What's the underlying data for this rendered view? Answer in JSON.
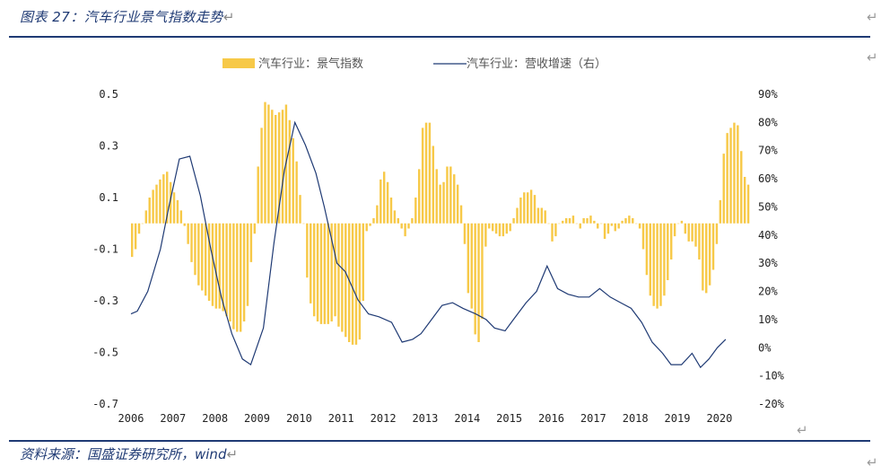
{
  "header": {
    "title": "图表 27：汽车行业景气指数走势",
    "return_mark": "↵"
  },
  "footer": {
    "source": "资料来源：国盛证券研究所，wind"
  },
  "colors": {
    "bar": "#f7c948",
    "line": "#1f3a74",
    "rule": "#1f3a74"
  },
  "chart_data": {
    "type": "bar+line",
    "title": "汽车行业景气指数走势",
    "legend": {
      "placement": "top-center",
      "bar_label": "汽车行业：景气指数",
      "line_label": "汽车行业：营收增速（右）"
    },
    "x_labels": [
      "2006",
      "2007",
      "2008",
      "2009",
      "2010",
      "2011",
      "2012",
      "2013",
      "2014",
      "2015",
      "2016",
      "2017",
      "2018",
      "2019",
      "2020"
    ],
    "x_range": [
      2006.0,
      2020.6
    ],
    "left_axis": {
      "range": [
        -0.7,
        0.5
      ],
      "ticks": [
        0.5,
        0.3,
        0.1,
        -0.1,
        -0.3,
        -0.5,
        -0.7
      ],
      "tick_labels": [
        "0.5",
        "0.3",
        "0.1",
        "-0.1",
        "-0.3",
        "-0.5",
        "-0.7"
      ]
    },
    "right_axis": {
      "range": [
        -20,
        90
      ],
      "ticks": [
        90,
        80,
        70,
        60,
        50,
        40,
        30,
        20,
        10,
        0,
        -10,
        -20
      ],
      "tick_labels": [
        "90%",
        "80%",
        "70%",
        "60%",
        "50%",
        "40%",
        "30%",
        "20%",
        "10%",
        "0%",
        "-10%",
        "-20%"
      ]
    },
    "bar_series": {
      "name": "汽车行业：景气指数",
      "x_start": 2006.0,
      "step": 0.0833,
      "values": [
        -0.13,
        -0.1,
        -0.04,
        0.0,
        0.05,
        0.1,
        0.13,
        0.15,
        0.17,
        0.19,
        0.2,
        0.16,
        0.12,
        0.09,
        0.05,
        -0.01,
        -0.08,
        -0.15,
        -0.2,
        -0.24,
        -0.26,
        -0.28,
        -0.3,
        -0.32,
        -0.33,
        -0.33,
        -0.34,
        -0.36,
        -0.38,
        -0.41,
        -0.42,
        -0.42,
        -0.38,
        -0.32,
        -0.15,
        -0.04,
        0.22,
        0.37,
        0.47,
        0.46,
        0.44,
        0.42,
        0.43,
        0.44,
        0.46,
        0.4,
        0.33,
        0.24,
        0.11,
        0.0,
        -0.21,
        -0.31,
        -0.36,
        -0.38,
        -0.39,
        -0.39,
        -0.39,
        -0.38,
        -0.36,
        -0.4,
        -0.42,
        -0.44,
        -0.46,
        -0.47,
        -0.47,
        -0.45,
        -0.3,
        -0.03,
        -0.01,
        0.02,
        0.07,
        0.17,
        0.2,
        0.16,
        0.1,
        0.05,
        0.02,
        -0.02,
        -0.05,
        -0.02,
        0.02,
        0.1,
        0.21,
        0.37,
        0.39,
        0.39,
        0.3,
        0.21,
        0.15,
        0.16,
        0.22,
        0.22,
        0.19,
        0.15,
        0.07,
        -0.08,
        -0.27,
        -0.33,
        -0.43,
        -0.46,
        -0.37,
        -0.09,
        -0.02,
        -0.03,
        -0.04,
        -0.05,
        -0.05,
        -0.04,
        -0.03,
        0.02,
        0.06,
        0.1,
        0.12,
        0.12,
        0.13,
        0.11,
        0.06,
        0.06,
        0.05,
        0.0,
        -0.07,
        -0.05,
        0.0,
        0.01,
        0.02,
        0.02,
        0.03,
        0.0,
        -0.02,
        0.02,
        0.02,
        0.03,
        0.01,
        -0.02,
        0.0,
        -0.06,
        -0.04,
        -0.01,
        -0.03,
        -0.02,
        0.01,
        0.02,
        0.03,
        0.02,
        0.0,
        -0.02,
        -0.1,
        -0.2,
        -0.28,
        -0.32,
        -0.33,
        -0.32,
        -0.28,
        -0.22,
        -0.14,
        -0.05,
        0.0,
        0.01,
        -0.04,
        -0.07,
        -0.07,
        -0.09,
        -0.14,
        -0.26,
        -0.27,
        -0.24,
        -0.18,
        -0.08,
        0.09,
        0.27,
        0.35,
        0.37,
        0.39,
        0.38,
        0.28,
        0.18,
        0.15
      ]
    },
    "line_series": {
      "name": "汽车行业：营收增速（右）",
      "points": [
        [
          2006.0,
          12
        ],
        [
          2006.15,
          13
        ],
        [
          2006.4,
          20
        ],
        [
          2006.7,
          35
        ],
        [
          2006.9,
          50
        ],
        [
          2007.15,
          67
        ],
        [
          2007.4,
          68
        ],
        [
          2007.65,
          54
        ],
        [
          2007.9,
          35
        ],
        [
          2008.15,
          18
        ],
        [
          2008.4,
          5
        ],
        [
          2008.65,
          -4
        ],
        [
          2008.85,
          -6
        ],
        [
          2009.15,
          7
        ],
        [
          2009.4,
          37
        ],
        [
          2009.65,
          63
        ],
        [
          2009.9,
          80
        ],
        [
          2010.15,
          72
        ],
        [
          2010.4,
          62
        ],
        [
          2010.6,
          50
        ],
        [
          2010.9,
          30
        ],
        [
          2011.1,
          27
        ],
        [
          2011.4,
          17
        ],
        [
          2011.65,
          12
        ],
        [
          2011.9,
          11
        ],
        [
          2012.2,
          9
        ],
        [
          2012.45,
          2
        ],
        [
          2012.7,
          3
        ],
        [
          2012.9,
          5
        ],
        [
          2013.15,
          10
        ],
        [
          2013.4,
          15
        ],
        [
          2013.65,
          16
        ],
        [
          2013.9,
          14
        ],
        [
          2014.2,
          12
        ],
        [
          2014.45,
          10
        ],
        [
          2014.65,
          7
        ],
        [
          2014.9,
          6
        ],
        [
          2015.1,
          10
        ],
        [
          2015.4,
          16
        ],
        [
          2015.65,
          20
        ],
        [
          2015.9,
          29
        ],
        [
          2016.15,
          21
        ],
        [
          2016.4,
          19
        ],
        [
          2016.65,
          18
        ],
        [
          2016.9,
          18
        ],
        [
          2017.15,
          21
        ],
        [
          2017.4,
          18
        ],
        [
          2017.65,
          16
        ],
        [
          2017.9,
          14
        ],
        [
          2018.15,
          9
        ],
        [
          2018.4,
          2
        ],
        [
          2018.65,
          -2
        ],
        [
          2018.85,
          -6
        ],
        [
          2019.1,
          -6
        ],
        [
          2019.35,
          -2
        ],
        [
          2019.55,
          -7
        ],
        [
          2019.75,
          -4
        ],
        [
          2019.95,
          0
        ],
        [
          2020.15,
          3
        ]
      ]
    }
  }
}
